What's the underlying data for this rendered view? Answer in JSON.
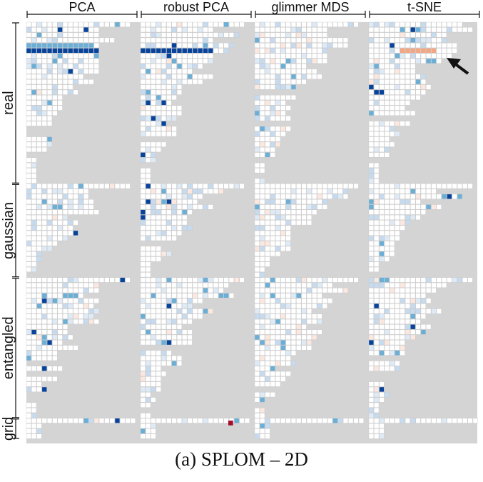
{
  "caption": "(a)  SPLOM – 2D",
  "chart_data": {
    "type": "heatmap",
    "columns": [
      "PCA",
      "robust PCA",
      "glimmer MDS",
      "t-SNE"
    ],
    "rows": [
      "real",
      "gaussian",
      "entangled",
      "grid"
    ],
    "grid_on": true,
    "colors": {
      "background": "#d4d4d4",
      "empty_cell": "#ffffff",
      "cell_border": "#c8c8c8",
      "scale": {
        "-1": "#a50f2d",
        "-0.5": "#f4a582",
        "-0.15": "#fde8e0",
        "0": "#ffffff",
        "0.15": "#deebf7",
        "0.35": "#c6dbef",
        "0.6": "#6baed6",
        "1": "#08439b"
      }
    },
    "legend": "none",
    "annotation": "arrow-icon pointing to highlighted t-SNE cells (upper-right of real block)"
  }
}
